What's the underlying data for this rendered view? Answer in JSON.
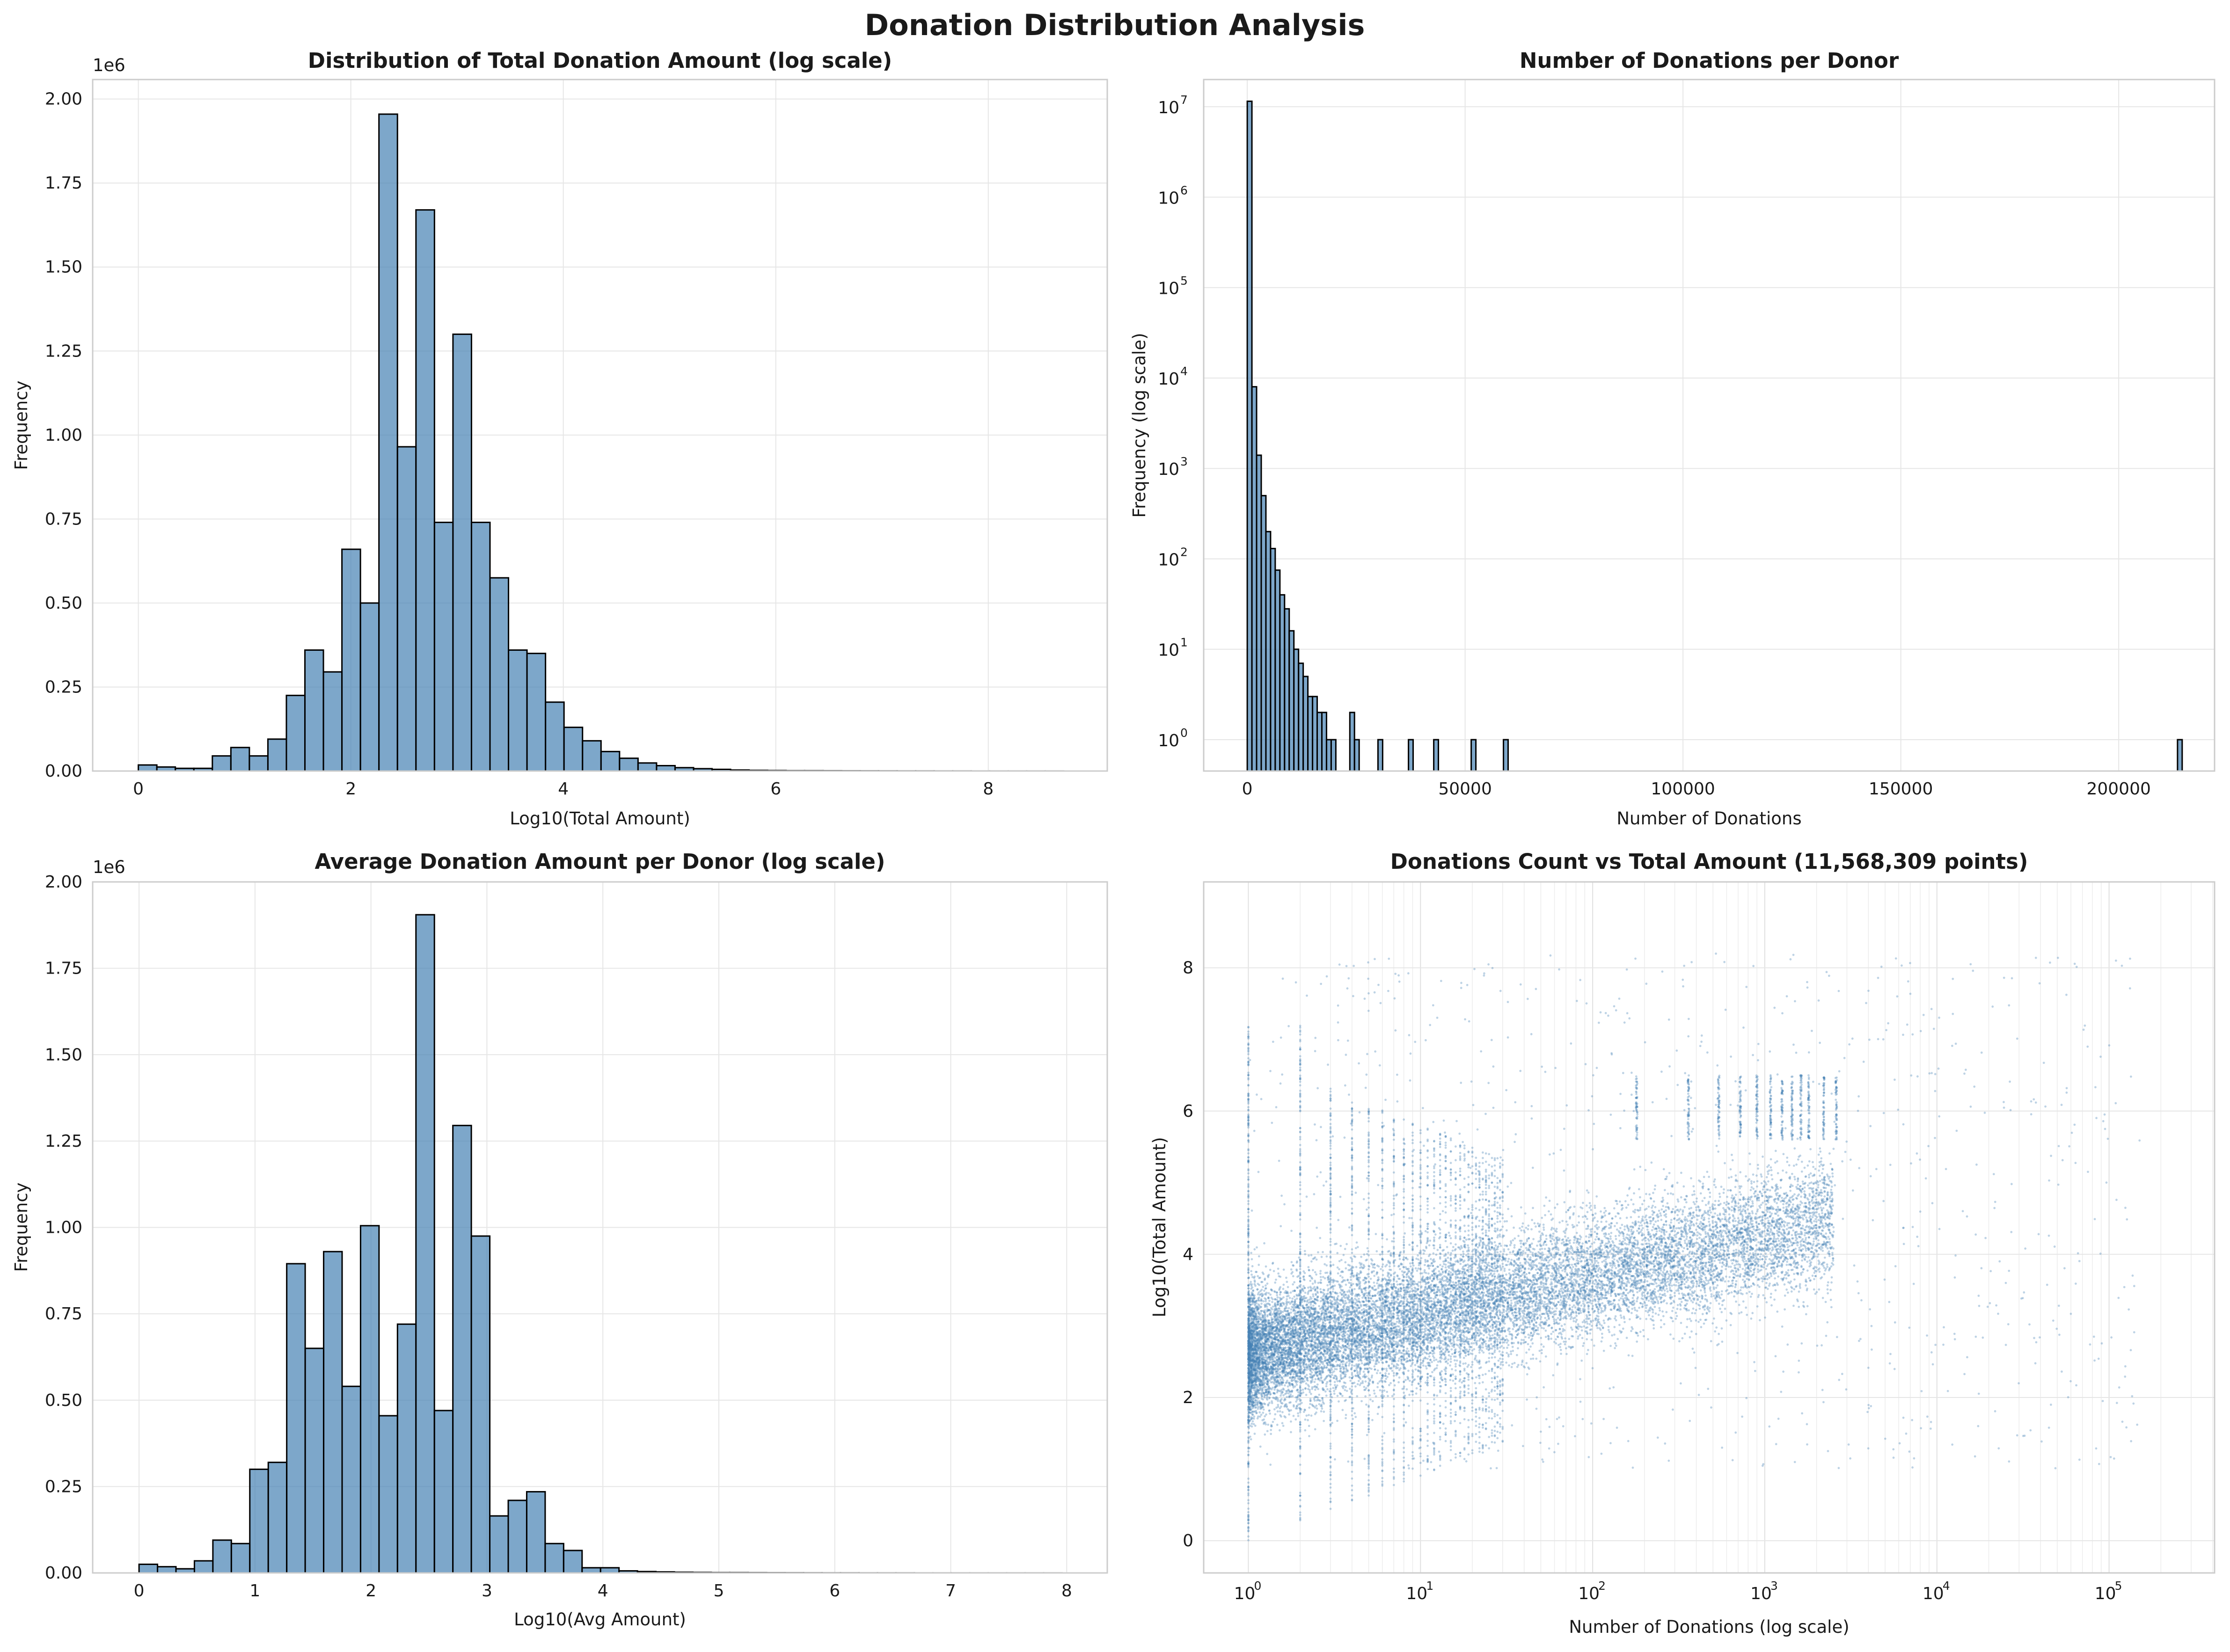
{
  "title": "Donation Distribution Analysis",
  "chart_data": [
    {
      "type": "bar",
      "title": "Distribution of Total Donation Amount (log scale)",
      "xlabel": "Log10(Total Amount)",
      "ylabel": "Frequency",
      "offset_label": "1e6",
      "xlim": [
        -0.43,
        9.12
      ],
      "ylim": [
        0,
        2.058
      ],
      "xticks": [
        0,
        2,
        4,
        6,
        8
      ],
      "xtick_labels": [
        "0",
        "2",
        "4",
        "6",
        "8"
      ],
      "yticks": [
        0,
        0.25,
        0.5,
        0.75,
        1.0,
        1.25,
        1.5,
        1.75,
        2.0
      ],
      "ytick_labels": [
        "0.00",
        "0.25",
        "0.50",
        "0.75",
        "1.00",
        "1.25",
        "1.50",
        "1.75",
        "2.00"
      ],
      "bin_start": 0,
      "bin_width": 0.1742,
      "values": [
        0.018,
        0.012,
        0.008,
        0.008,
        0.045,
        0.07,
        0.045,
        0.095,
        0.225,
        0.36,
        0.295,
        0.66,
        0.5,
        1.955,
        0.965,
        1.67,
        0.74,
        1.3,
        0.74,
        0.575,
        0.36,
        0.35,
        0.205,
        0.13,
        0.09,
        0.058,
        0.038,
        0.024,
        0.016,
        0.01,
        0.007,
        0.005,
        0.003,
        0.002,
        0.0015,
        0.001,
        0.001,
        0.0008,
        0.0006,
        0.0005,
        0.0004,
        0.0003,
        0.0003,
        0.0002,
        0.0002,
        0.0001,
        0.0001,
        0.0001,
        0.0001,
        0.0001
      ],
      "grid": true,
      "bar_color": "#4682b4"
    },
    {
      "type": "bar",
      "title": "Number of Donations per Donor",
      "xlabel": "Number of Donations",
      "ylabel": "Frequency (log scale)",
      "log_y": true,
      "xlim": [
        -10000,
        222000
      ],
      "ylim": [
        0.45,
        20000000
      ],
      "xticks": [
        0,
        50000,
        100000,
        150000,
        200000
      ],
      "xtick_labels": [
        "0",
        "50000",
        "100000",
        "150000",
        "200000"
      ],
      "ytick_exponents": [
        0,
        1,
        2,
        3,
        4,
        5,
        6,
        7
      ],
      "bin_width": 1070,
      "bins": [
        {
          "x": 0,
          "y": 11500000
        },
        {
          "x": 1070,
          "y": 8000
        },
        {
          "x": 2140,
          "y": 1400
        },
        {
          "x": 3210,
          "y": 500
        },
        {
          "x": 4280,
          "y": 200
        },
        {
          "x": 5350,
          "y": 130
        },
        {
          "x": 6420,
          "y": 75
        },
        {
          "x": 7490,
          "y": 40
        },
        {
          "x": 8560,
          "y": 28
        },
        {
          "x": 9630,
          "y": 16
        },
        {
          "x": 10700,
          "y": 10
        },
        {
          "x": 11770,
          "y": 7
        },
        {
          "x": 12840,
          "y": 5
        },
        {
          "x": 13910,
          "y": 3
        },
        {
          "x": 14980,
          "y": 3
        },
        {
          "x": 16050,
          "y": 2
        },
        {
          "x": 17120,
          "y": 2
        },
        {
          "x": 18190,
          "y": 1
        },
        {
          "x": 19260,
          "y": 1
        },
        {
          "x": 23540,
          "y": 2
        },
        {
          "x": 24610,
          "y": 1
        },
        {
          "x": 30000,
          "y": 1
        },
        {
          "x": 37000,
          "y": 1
        },
        {
          "x": 42800,
          "y": 1
        },
        {
          "x": 51400,
          "y": 1
        },
        {
          "x": 58800,
          "y": 1
        },
        {
          "x": 213500,
          "y": 1
        }
      ],
      "grid": true,
      "bar_color": "#4682b4"
    },
    {
      "type": "bar",
      "title": "Average Donation Amount per Donor (log scale)",
      "xlabel": "Log10(Avg Amount)",
      "ylabel": "Frequency",
      "offset_label": "1e6",
      "xlim": [
        -0.4,
        8.35
      ],
      "ylim": [
        0,
        2.0
      ],
      "xticks": [
        0,
        1,
        2,
        3,
        4,
        5,
        6,
        7,
        8
      ],
      "xtick_labels": [
        "0",
        "1",
        "2",
        "3",
        "4",
        "5",
        "6",
        "7",
        "8"
      ],
      "yticks": [
        0,
        0.25,
        0.5,
        0.75,
        1.0,
        1.25,
        1.5,
        1.75,
        2.0
      ],
      "ytick_labels": [
        "0.00",
        "0.25",
        "0.50",
        "0.75",
        "1.00",
        "1.25",
        "1.50",
        "1.75",
        "2.00"
      ],
      "bin_start": 0,
      "bin_width": 0.1592,
      "values": [
        0.025,
        0.018,
        0.012,
        0.035,
        0.095,
        0.085,
        0.3,
        0.32,
        0.895,
        0.65,
        0.93,
        0.54,
        1.005,
        0.455,
        0.72,
        1.905,
        0.47,
        1.295,
        0.975,
        0.165,
        0.21,
        0.235,
        0.085,
        0.065,
        0.015,
        0.015,
        0.006,
        0.004,
        0.003,
        0.002,
        0.0015,
        0.001,
        0.001,
        0.0008,
        0.0006,
        0.0005,
        0.0004,
        0.0003,
        0.0003,
        0.0002,
        0.0002,
        0.0002,
        0.0001,
        0.0001,
        0.0001,
        0.0001,
        0.0001,
        0.0001,
        0.0001,
        0.0001
      ],
      "grid": true,
      "bar_color": "#4682b4"
    },
    {
      "type": "scatter",
      "title": "Donations Count vs Total Amount (11,568,309 points)",
      "xlabel": "Number of Donations (log scale)",
      "ylabel": "Log10(Total Amount)",
      "log_x": true,
      "xlim": [
        0.55,
        410000
      ],
      "ylim": [
        -0.45,
        9.2
      ],
      "xtick_exponents": [
        0,
        1,
        2,
        3,
        4,
        5
      ],
      "yticks": [
        0,
        2,
        4,
        6,
        8
      ],
      "ytick_labels": [
        "0",
        "2",
        "4",
        "6",
        "8"
      ],
      "point_count": 11568309,
      "point_color": "#4682b4",
      "grid": true
    }
  ]
}
